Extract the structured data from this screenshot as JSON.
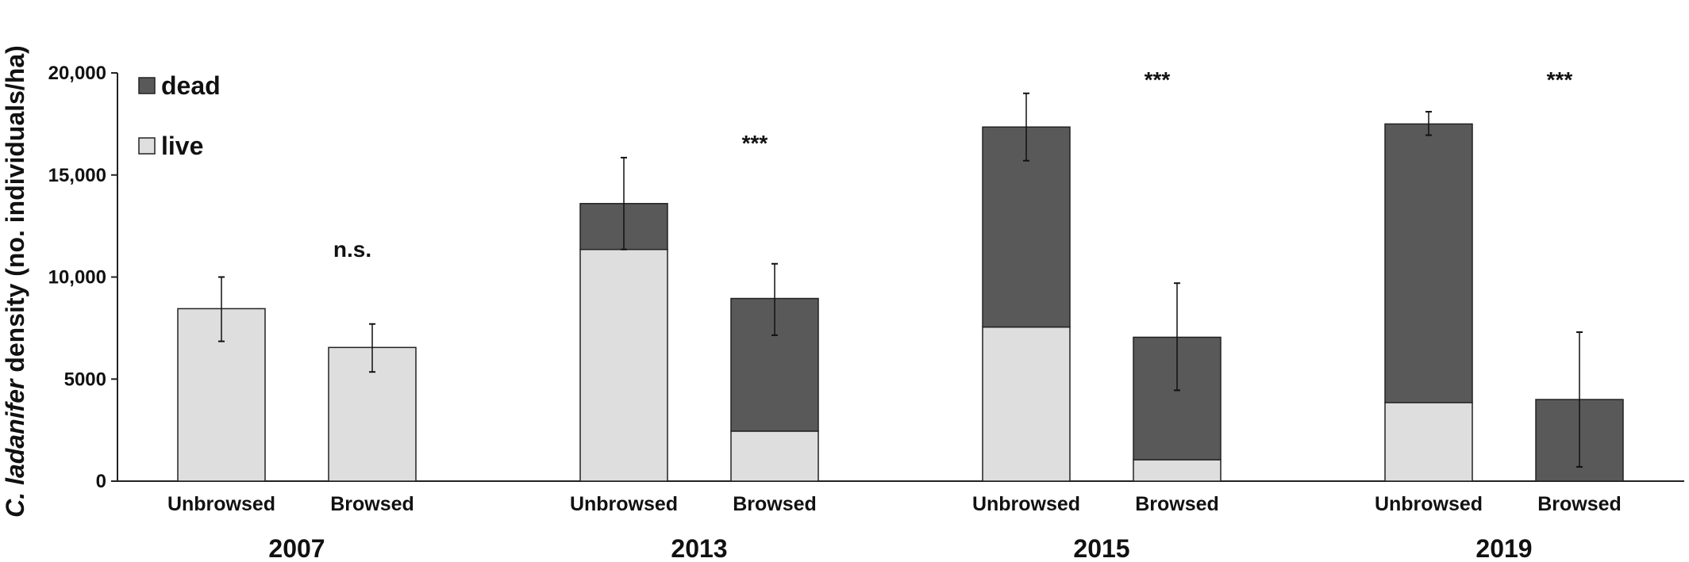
{
  "chart_data": {
    "type": "bar",
    "stacked": true,
    "ylabel_italic": "C. ladanifer",
    "ylabel_rest": " density (no. individuals/ha)",
    "ylim": [
      0,
      20000
    ],
    "yticks": [
      {
        "value": 0,
        "label": "0"
      },
      {
        "value": 5000,
        "label": "5000"
      },
      {
        "value": 10000,
        "label": "10,000"
      },
      {
        "value": 15000,
        "label": "15,000"
      },
      {
        "value": 20000,
        "label": "20,000"
      }
    ],
    "legend": {
      "placement": "top-left",
      "entries": [
        {
          "name": "dead",
          "color": "#595959"
        },
        {
          "name": "live",
          "color": "#dedede"
        }
      ]
    },
    "colors": {
      "live": "#dedede",
      "dead": "#595959",
      "edge": "#222222"
    },
    "groups": [
      {
        "year": "2007",
        "significance": "n.s.",
        "sig_y": 11000,
        "bars": [
          {
            "label": "Unbrowsed",
            "live": 8450,
            "dead": 0,
            "err_low": 6850,
            "err_high": 10000
          },
          {
            "label": "Browsed",
            "live": 6550,
            "dead": 0,
            "err_low": 5350,
            "err_high": 7700
          }
        ]
      },
      {
        "year": "2013",
        "significance": "***",
        "sig_y": 16200,
        "bars": [
          {
            "label": "Unbrowsed",
            "live": 11350,
            "dead": 2250,
            "err_low": 11350,
            "err_high": 15850
          },
          {
            "label": "Browsed",
            "live": 2450,
            "dead": 6500,
            "err_low": 7150,
            "err_high": 10650
          }
        ]
      },
      {
        "year": "2015",
        "significance": "***",
        "sig_y": 19300,
        "bars": [
          {
            "label": "Unbrowsed",
            "live": 7550,
            "dead": 9800,
            "err_low": 15700,
            "err_high": 19000
          },
          {
            "label": "Browsed",
            "live": 1050,
            "dead": 6000,
            "err_low": 4450,
            "err_high": 9700
          }
        ]
      },
      {
        "year": "2019",
        "significance": "***",
        "sig_y": 19300,
        "bars": [
          {
            "label": "Unbrowsed",
            "live": 3850,
            "dead": 13650,
            "err_low": 16950,
            "err_high": 18100
          },
          {
            "label": "Browsed",
            "live": 0,
            "dead": 4000,
            "err_low": 700,
            "err_high": 7300
          }
        ]
      }
    ]
  }
}
